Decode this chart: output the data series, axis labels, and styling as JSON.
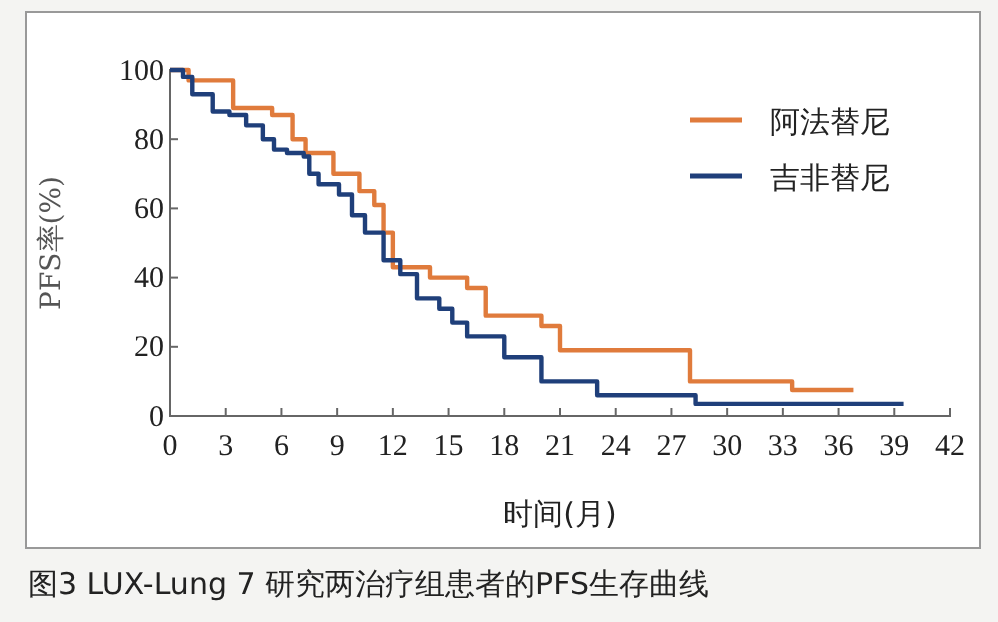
{
  "chart_data": {
    "type": "step",
    "xlabel": "时间(月)",
    "ylabel": "PFS率(%)",
    "annotations": [
      "图3  LUX-Lung 7 研究两治疗组患者的PFS生存曲线"
    ],
    "xlim": [
      0,
      42
    ],
    "xticks": [
      0,
      3,
      6,
      9,
      12,
      15,
      18,
      21,
      24,
      27,
      30,
      33,
      36,
      39,
      42
    ],
    "ylim": [
      0,
      100
    ],
    "yticks": [
      0,
      20,
      40,
      60,
      80,
      100
    ],
    "legend": "top right",
    "marker": "none",
    "line_style": "solid",
    "grid": false,
    "series": [
      {
        "name": "阿法替尼",
        "color": "#e07b3c",
        "x": [
          0,
          1,
          2,
          3.4,
          5.5,
          6.6,
          7.3,
          8.8,
          10.2,
          11,
          11.5,
          12,
          14,
          16,
          17,
          20,
          21,
          28,
          33.5,
          36.8
        ],
        "values": [
          100,
          97,
          97,
          89,
          87,
          80,
          76,
          70,
          65,
          61,
          53,
          43,
          40,
          37,
          29,
          26,
          19,
          10,
          7.5,
          7.5
        ]
      },
      {
        "name": "吉非替尼",
        "color": "#1f3f7a",
        "x": [
          0,
          0.7,
          1.2,
          2.3,
          3.2,
          4.1,
          5,
          5.6,
          6.3,
          7.2,
          7.5,
          8,
          9.1,
          9.8,
          10.5,
          11.5,
          12.4,
          13.3,
          14.5,
          15.2,
          16,
          18,
          20,
          23,
          28.3,
          39.5
        ],
        "values": [
          100,
          98,
          93,
          88,
          87,
          84,
          80,
          77,
          76,
          75,
          70,
          67,
          64,
          58,
          53,
          45,
          41,
          34,
          31,
          27,
          23,
          17,
          10,
          6,
          3.5,
          3.5
        ]
      }
    ]
  }
}
